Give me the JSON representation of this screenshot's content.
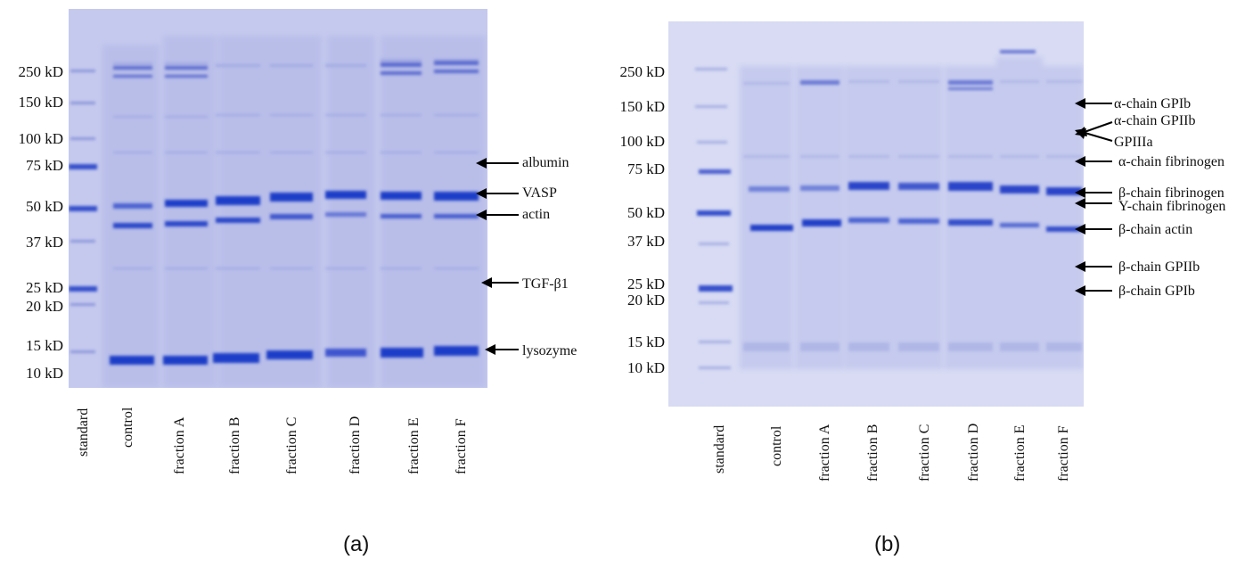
{
  "panels": [
    {
      "id": "a",
      "caption": "(a)",
      "mw_markers": [
        "250 kD",
        "150 kD",
        "100 kD",
        "75 kD",
        "50 kD",
        "37 kD",
        "25 kD",
        "20 kD",
        "15 kD",
        "10 kD"
      ],
      "lanes": [
        "standard",
        "control",
        "fraction A",
        "fraction B",
        "fraction C",
        "fraction D",
        "fraction E",
        "fraction F"
      ],
      "annotations": [
        "albumin",
        "VASP",
        "actin",
        "TGF-β1",
        "lysozyme"
      ]
    },
    {
      "id": "b",
      "caption": "(b)",
      "mw_markers": [
        "250 kD",
        "150 kD",
        "100 kD",
        "75 kD",
        "50 kD",
        "37 kD",
        "25 kD",
        "20 kD",
        "15 kD",
        "10 kD"
      ],
      "lanes": [
        "standard",
        "control",
        "fraction A",
        "fraction B",
        "fraction C",
        "fraction D",
        "fraction E",
        "fraction F"
      ],
      "annotations": [
        "α-chain GPIb",
        "α-chain GPIIb",
        "GPIIIa",
        "α-chain fibrinogen",
        "β-chain fibrinogen",
        "Υ-chain fibrinogen",
        "β-chain actin",
        "β-chain GPIIb",
        "β-chain GPIb"
      ]
    }
  ],
  "colors": {
    "gel_background": "#c9cdef",
    "band_dark": "#1f3cc8",
    "band_light": "#8f9be0"
  }
}
